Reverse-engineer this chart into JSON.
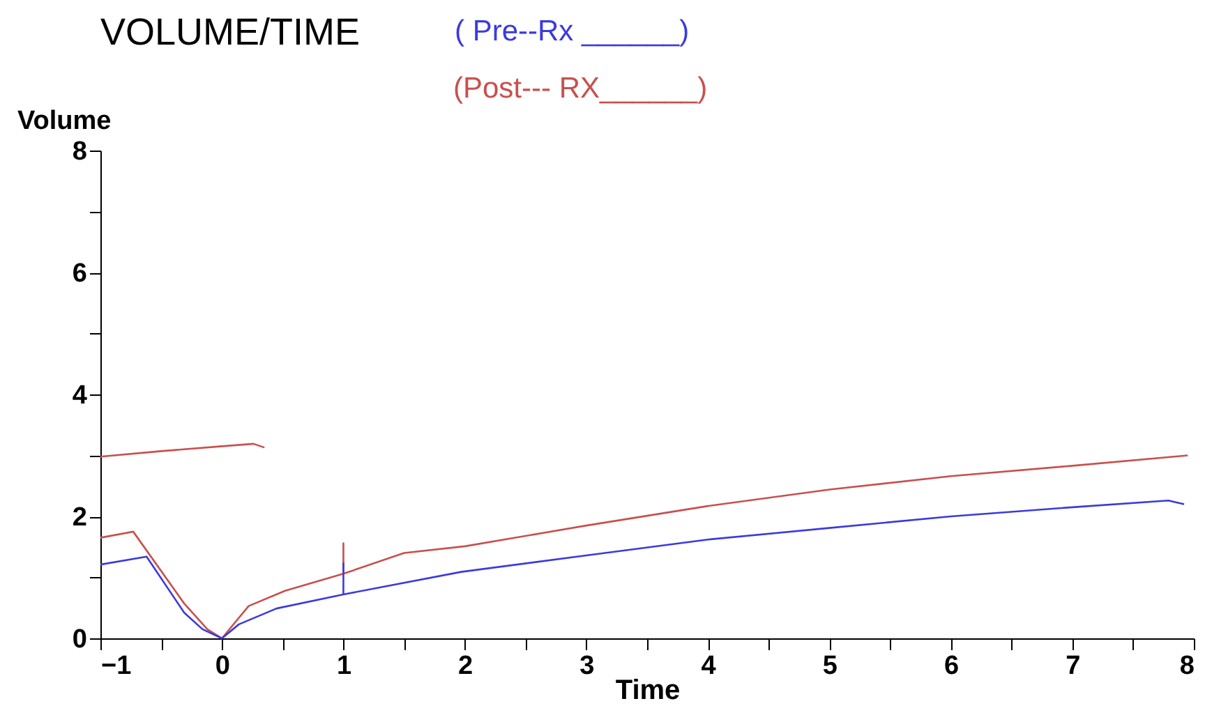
{
  "chart_data": {
    "type": "line",
    "title": "VOLUME/TIME",
    "xlabel": "Time",
    "ylabel": "Volume",
    "series": [
      {
        "name": "( Pre--Rx ______)",
        "color": "#3b3bdc",
        "x": [
          -1,
          -0.62,
          -0.31,
          -0.16,
          0,
          0.14,
          0.45,
          1.0,
          1.0,
          1.0,
          1.97,
          3,
          4,
          5,
          6,
          7,
          7.79,
          7.92
        ],
        "values": [
          1.21,
          1.34,
          0.42,
          0.15,
          0,
          0.23,
          0.49,
          0.72,
          1.23,
          0.72,
          1.09,
          1.36,
          1.62,
          1.81,
          2.0,
          2.15,
          2.26,
          2.2
        ]
      },
      {
        "name": "(Post--- RX______)",
        "color": "#c8504e",
        "x": [
          -1,
          -0.73,
          -0.31,
          -0.12,
          0,
          0.22,
          0.52,
          1.0,
          1.0,
          1.0,
          1.5,
          2,
          3,
          4,
          5,
          6,
          7,
          7.95
        ],
        "values": [
          1.65,
          1.75,
          0.57,
          0.15,
          0,
          0.53,
          0.78,
          1.06,
          1.56,
          1.06,
          1.4,
          1.51,
          1.85,
          2.17,
          2.44,
          2.66,
          2.83,
          3.0
        ]
      },
      {
        "color": "#c8504e",
        "x": [
          -1,
          -0.5,
          0,
          0.26,
          0.35
        ],
        "values": [
          2.98,
          3.07,
          3.15,
          3.19,
          3.13
        ]
      }
    ],
    "xlim": [
      -1,
      8
    ],
    "xticks": [
      -1,
      {
        "value": -0.5,
        "label": null
      },
      0,
      {
        "value": 0.5,
        "label": null
      },
      1,
      {
        "value": 1.5,
        "label": null
      },
      2,
      {
        "value": 2.5,
        "label": null
      },
      3,
      {
        "value": 3.5,
        "label": null
      },
      4,
      {
        "value": 4.5,
        "label": null
      },
      5,
      {
        "value": 5.5,
        "label": null
      },
      6,
      {
        "value": 6.5,
        "label": null
      },
      7,
      {
        "value": 7.5,
        "label": null
      },
      8
    ],
    "ylim": [
      0,
      8
    ],
    "yticks": [
      0,
      {
        "value": 1,
        "label": null
      },
      2,
      {
        "value": 3,
        "label": null
      },
      4,
      {
        "value": 5,
        "label": null
      },
      6,
      {
        "value": 7,
        "label": null
      },
      8
    ],
    "grid": false,
    "legend": "top"
  }
}
